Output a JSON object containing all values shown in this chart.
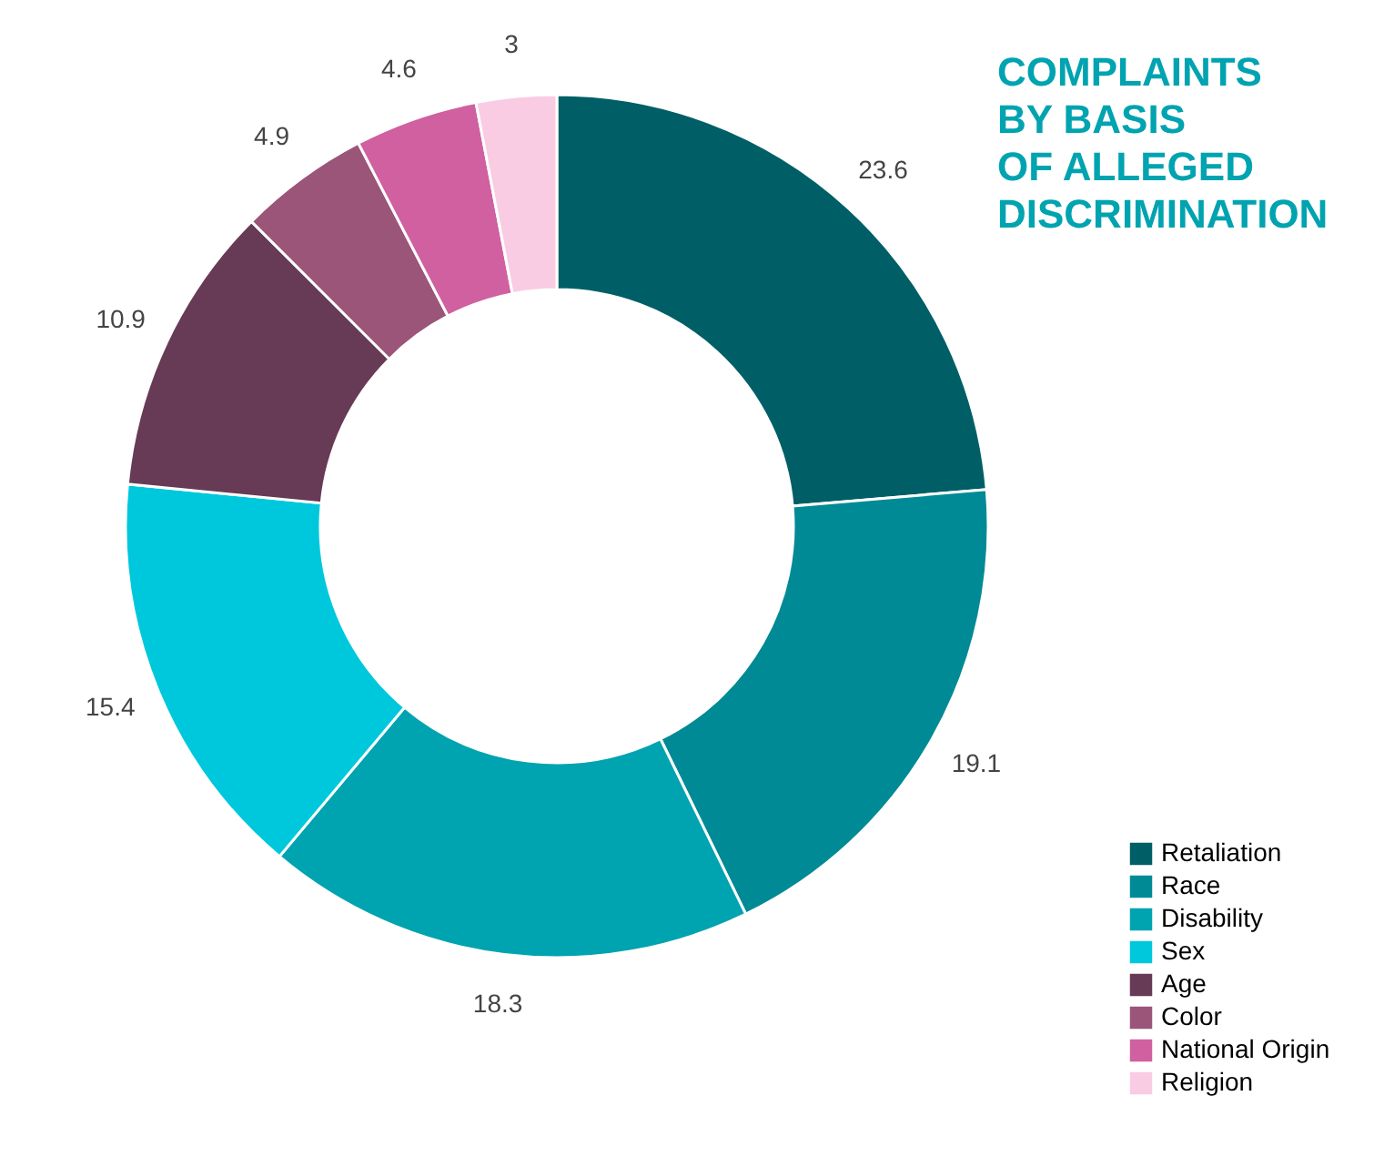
{
  "chart_data": {
    "type": "donut",
    "title": "COMPLAINTS BY BASIS OF ALLEGED DISCRIMINATION",
    "categories": [
      "Retaliation",
      "Race",
      "Disability",
      "Sex",
      "Age",
      "Color",
      "National Origin",
      "Religion"
    ],
    "values": [
      23.6,
      19.1,
      18.3,
      15.4,
      10.9,
      4.9,
      4.6,
      3
    ],
    "colors": [
      "#005f66",
      "#008a96",
      "#00a3b0",
      "#00c8dc",
      "#673a55",
      "#9a5578",
      "#d060a0",
      "#f9cce3"
    ],
    "data_labels": true,
    "legend": "bottom right"
  }
}
